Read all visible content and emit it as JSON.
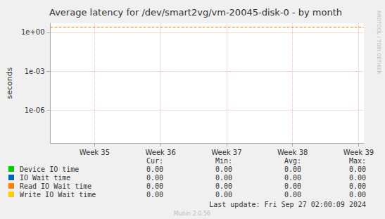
{
  "chart_data": {
    "type": "line",
    "title": "Average latency for /dev/smart2vg/vm-20045-disk-0 - by month",
    "ylabel": "seconds",
    "log": "y",
    "grid": true,
    "x": [
      34.33,
      39.08
    ],
    "xlim": [
      34.33,
      39.08
    ],
    "xticks": [
      {
        "value": 35,
        "label": "Week 35"
      },
      {
        "value": 36,
        "label": "Week 36"
      },
      {
        "value": 37,
        "label": "Week 37"
      },
      {
        "value": 38,
        "label": "Week 38"
      },
      {
        "value": 39,
        "label": "Week 39"
      }
    ],
    "ylim": [
      3e-09,
      5
    ],
    "yticks": [
      {
        "value": 1e-06,
        "label": "1e-06"
      },
      {
        "value": 0.001,
        "label": "1e-03"
      },
      {
        "value": 1,
        "label": "1e+00"
      }
    ],
    "legend_columns": [
      "Cur:",
      "Min:",
      "Avg:",
      "Max:"
    ],
    "series": [
      {
        "name": "Device IO time",
        "color": "#00cc00",
        "values": [
          0,
          0
        ],
        "stats": [
          0,
          0,
          0,
          0
        ],
        "stats_labels": [
          "0.00",
          "0.00",
          "0.00",
          "0.00"
        ]
      },
      {
        "name": "IO Wait time",
        "color": "#0066b3",
        "values": [
          0,
          0
        ],
        "stats": [
          0,
          0,
          0,
          0
        ],
        "stats_labels": [
          "0.00",
          "0.00",
          "0.00",
          "0.00"
        ]
      },
      {
        "name": "Read IO Wait time",
        "color": "#ff8000",
        "values": [
          0,
          0
        ],
        "threshold": 2.7,
        "stats": [
          0,
          0,
          0,
          0
        ],
        "stats_labels": [
          "0.00",
          "0.00",
          "0.00",
          "0.00"
        ]
      },
      {
        "name": "Write IO Wait time",
        "color": "#ffcc00",
        "values": [
          0,
          0
        ],
        "stats": [
          0,
          0,
          0,
          0
        ],
        "stats_labels": [
          "0.00",
          "0.00",
          "0.00",
          "0.00"
        ]
      }
    ],
    "footer": "Last update: Fri Sep 27 02:00:09 2024",
    "version": "Munin 2.0.56",
    "watermark": "RRDTOOL / TOBI OETIKER"
  }
}
